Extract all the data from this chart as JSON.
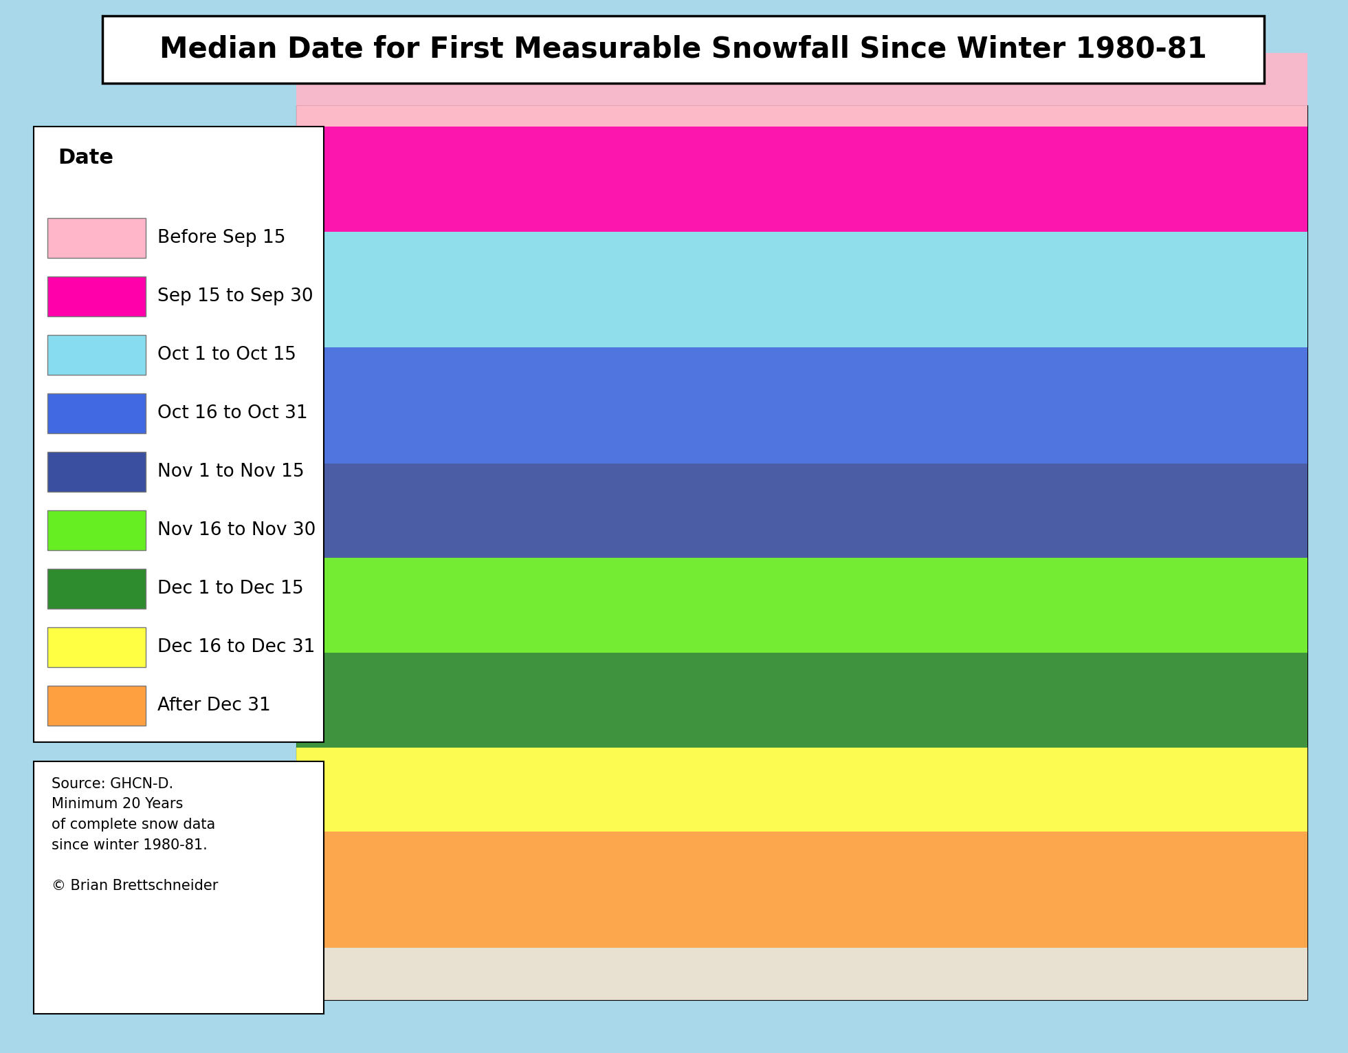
{
  "title": "Median Date for First Measurable Snowfall Since Winter 1980-81",
  "title_fontsize": 30,
  "title_fontweight": "bold",
  "title_font": "Arial Black",
  "legend_title": "Date",
  "legend_title_fontsize": 22,
  "legend_title_fontweight": "bold",
  "legend_fontsize": 19,
  "legend_entries": [
    {
      "label": "Before Sep 15",
      "color": "#FFB6C8"
    },
    {
      "label": "Sep 15 to Sep 30",
      "color": "#FF00AA"
    },
    {
      "label": "Oct 1 to Oct 15",
      "color": "#87DDEF"
    },
    {
      "label": "Oct 16 to Oct 31",
      "color": "#4169E1"
    },
    {
      "label": "Nov 1 to Nov 15",
      "color": "#3A4FA0"
    },
    {
      "label": "Nov 16 to Nov 30",
      "color": "#66EE22"
    },
    {
      "label": "Dec 1 to Dec 15",
      "color": "#2E8B2E"
    },
    {
      "label": "Dec 16 to Dec 31",
      "color": "#FFFF44"
    },
    {
      "label": "After Dec 31",
      "color": "#FFA040"
    }
  ],
  "source_text": "Source: GHCN-D.\nMinimum 20 Years\nof complete snow data\nsince winter 1980-81.\n\n© Brian Brettschneider",
  "source_fontsize": 15,
  "ocean_color": "#A8D8EA",
  "land_base_color": "#E8E0D0",
  "background_color": "#A8D8EA",
  "figsize": [
    19.61,
    15.31
  ],
  "dpi": 100,
  "lat_min": 14,
  "lat_max": 84,
  "lon_min": -175,
  "lon_max": -50
}
